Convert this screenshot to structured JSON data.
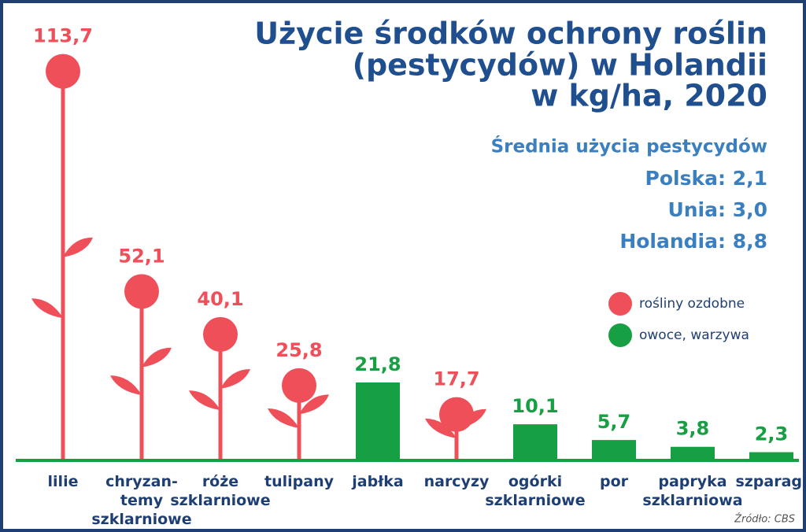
{
  "chart_data": {
    "type": "flowerbar",
    "title": [
      "Użycie środków ochrony roślin",
      "(pestycydów) w Holandii",
      "w kg/ha, 2020"
    ],
    "subtitle": "Średnia użycia pestycydów",
    "averages": [
      {
        "label": "Polska:",
        "value": "2,1"
      },
      {
        "label": "Unia:",
        "value": "3,0"
      },
      {
        "label": "Holandia:",
        "value": "8,8"
      }
    ],
    "categories": [
      "lilie",
      "chryzan-\ntemy\nszklarniowe",
      "róże\nszklarniowe",
      "tulipany",
      "jabłka",
      "narcyzy",
      "ogórki\nszklarniowe",
      "por",
      "papryka\nszklarniowa",
      "szparagi"
    ],
    "values": [
      113.7,
      52.1,
      40.1,
      25.8,
      21.8,
      17.7,
      10.1,
      5.7,
      3.8,
      2.3
    ],
    "value_labels": [
      "113,7",
      "52,1",
      "40,1",
      "25,8",
      "21,8",
      "17,7",
      "10,1",
      "5,7",
      "3,8",
      "2,3"
    ],
    "groups": [
      0,
      0,
      0,
      0,
      1,
      0,
      1,
      1,
      1,
      1
    ],
    "legend": [
      {
        "name": "rośliny ozdobne",
        "color": "#ef4f59"
      },
      {
        "name": "owoce, warzywa",
        "color": "#17a043"
      }
    ],
    "ylim": [
      0,
      120
    ],
    "source": "Źródło: CBS"
  }
}
